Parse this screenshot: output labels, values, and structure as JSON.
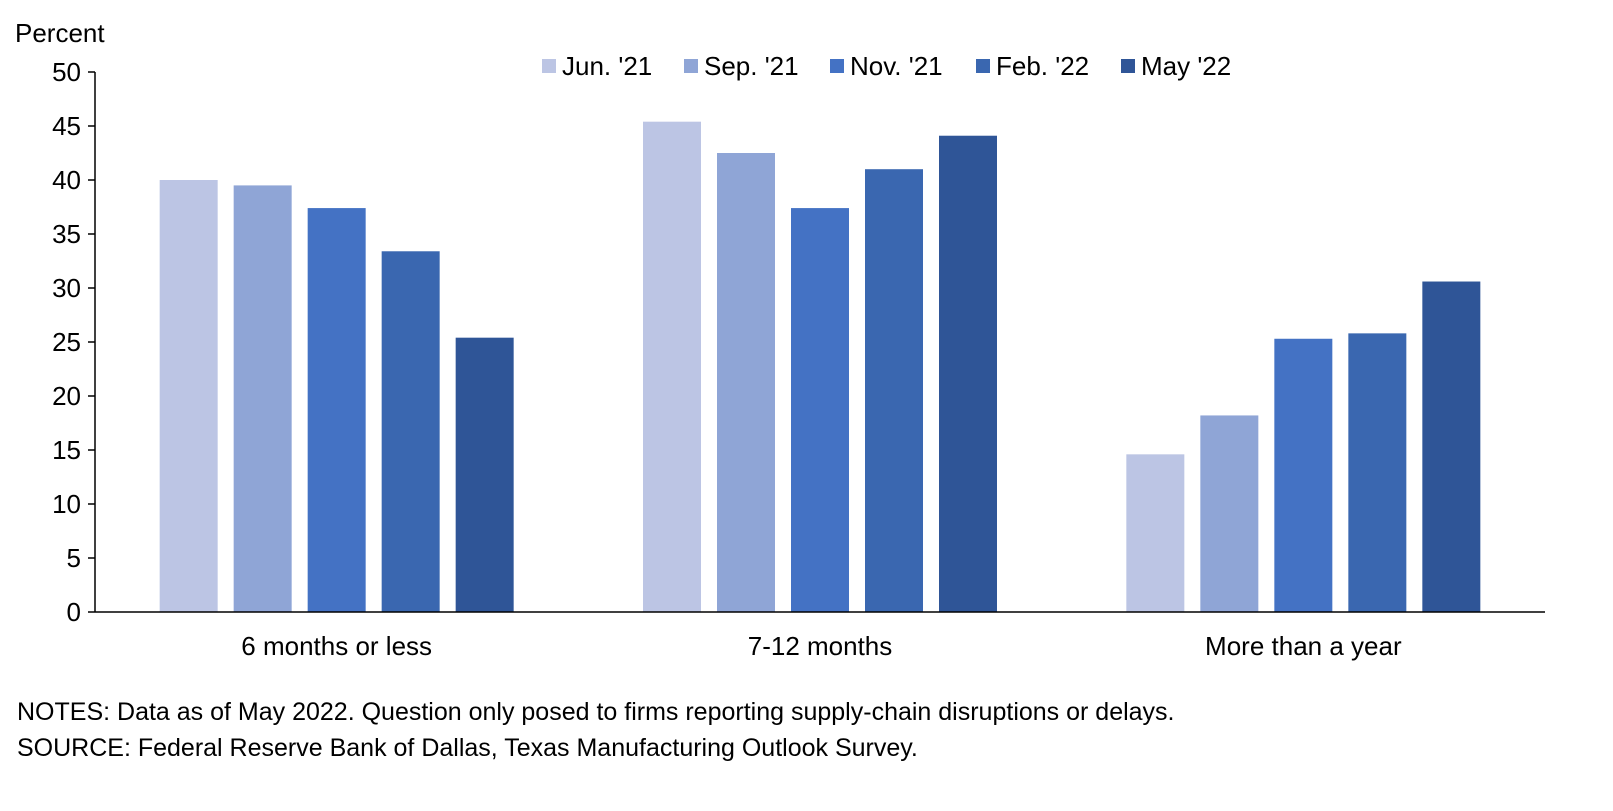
{
  "chart_data": {
    "type": "bar",
    "ylabel": "Percent",
    "ylim": [
      0,
      50
    ],
    "yticks": [
      "0",
      "5",
      "10",
      "15",
      "20",
      "25",
      "30",
      "35",
      "40",
      "45",
      "50"
    ],
    "categories": [
      "6 months or less",
      "7-12 months",
      "More than a year"
    ],
    "series": [
      {
        "name": "Jun. '21",
        "color": "#bcc5e4",
        "values": [
          40.0,
          45.4,
          14.6
        ]
      },
      {
        "name": "Sep. '21",
        "color": "#8fa5d6",
        "values": [
          39.5,
          42.5,
          18.2
        ]
      },
      {
        "name": "Nov. '21",
        "color": "#4472c4",
        "values": [
          37.4,
          37.4,
          25.3
        ]
      },
      {
        "name": "Feb. '22",
        "color": "#3a67b0",
        "values": [
          33.4,
          41.0,
          25.8
        ]
      },
      {
        "name": "May '22",
        "color": "#2f5597",
        "values": [
          25.4,
          44.1,
          30.6
        ]
      }
    ],
    "legend_position": "top",
    "grid": false
  },
  "footer": {
    "notes": "NOTES: Data as of May 2022. Question only posed to firms reporting supply-chain disruptions or delays.",
    "source": "SOURCE: Federal Reserve Bank of Dallas, Texas Manufacturing Outlook Survey."
  }
}
